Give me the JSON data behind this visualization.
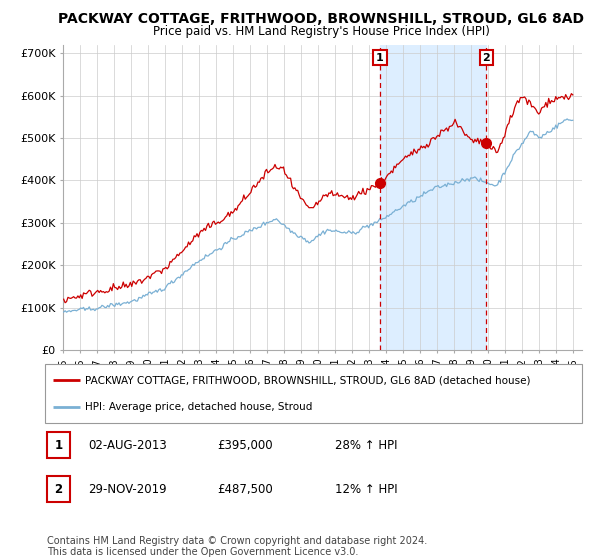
{
  "title": "PACKWAY COTTAGE, FRITHWOOD, BROWNSHILL, STROUD, GL6 8AD",
  "subtitle": "Price paid vs. HM Land Registry's House Price Index (HPI)",
  "ylim": [
    0,
    720000
  ],
  "yticks": [
    0,
    100000,
    200000,
    300000,
    400000,
    500000,
    600000,
    700000
  ],
  "ytick_labels": [
    "£0",
    "£100K",
    "£200K",
    "£300K",
    "£400K",
    "£500K",
    "£600K",
    "£700K"
  ],
  "sale1_date": "02-AUG-2013",
  "sale1_price": 395000,
  "sale1_label": "1",
  "sale1_pct": "28% ↑ HPI",
  "sale2_date": "29-NOV-2019",
  "sale2_price": 487500,
  "sale2_label": "2",
  "sale2_pct": "12% ↑ HPI",
  "legend_property": "PACKWAY COTTAGE, FRITHWOOD, BROWNSHILL, STROUD, GL6 8AD (detached house)",
  "legend_hpi": "HPI: Average price, detached house, Stroud",
  "property_color": "#cc0000",
  "hpi_color": "#7ab0d4",
  "shading_color": "#ddeeff",
  "vline_color": "#cc0000",
  "annotation_box_color": "#cc0000",
  "grid_color": "#cccccc",
  "background_color": "#ffffff",
  "copyright_text": "Contains HM Land Registry data © Crown copyright and database right 2024.\nThis data is licensed under the Open Government Licence v3.0.",
  "footnote_fontsize": 7.0,
  "title_fontsize": 10,
  "subtitle_fontsize": 8.5
}
